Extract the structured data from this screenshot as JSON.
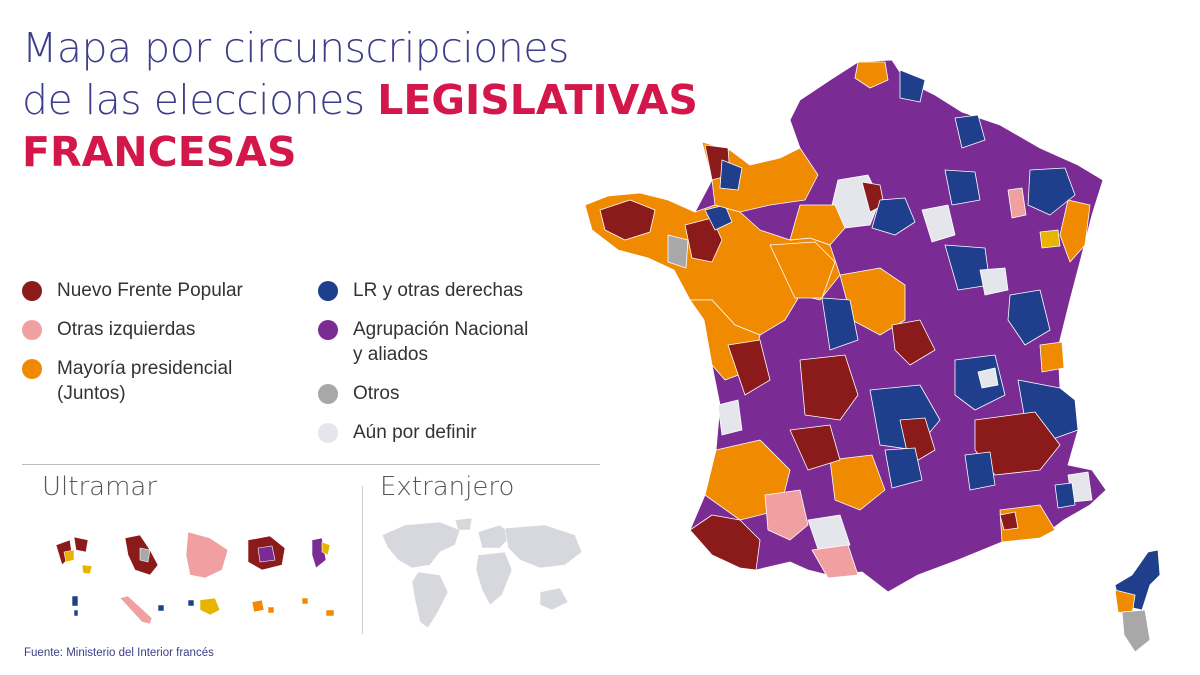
{
  "title": {
    "line1": "Mapa por circunscripciones",
    "line2_plain": "de las elecciones ",
    "line2_highlight": "LEGISLATIVAS",
    "line3_highlight": "FRANCESAS"
  },
  "legend": [
    {
      "label": "Nuevo Frente Popular",
      "color": "#8b1a1a"
    },
    {
      "label": "Otras izquierdas",
      "color": "#f0a0a0"
    },
    {
      "label": "Mayoría presidencial (Juntos)",
      "line1": "Mayoría presidencial",
      "line2": "(Juntos)",
      "color": "#f08a00"
    },
    {
      "label": "LR y otras derechas",
      "color": "#1f3f8c"
    },
    {
      "label": "Agrupación Nacional y aliados",
      "line1": "Agrupación Nacional",
      "line2": "y aliados",
      "color": "#7b2b94"
    },
    {
      "label": "Otros",
      "color": "#a8a8a8"
    },
    {
      "label": "Aún por definir",
      "color": "#e4e6ec"
    }
  ],
  "sections": {
    "overseas": "Ultramar",
    "abroad": "Extranjero"
  },
  "source": "Fuente: Ministerio del Interior francés",
  "colors": {
    "nfp": "#8b1a1a",
    "left_other": "#f0a0a0",
    "ensemble": "#f08a00",
    "lr": "#1f3f8c",
    "rn": "#7b2b94",
    "other": "#a8a8a8",
    "undecided": "#e4e6ec",
    "yellow": "#e8b400",
    "title": "#3d3d8a",
    "highlight": "#d4174a"
  }
}
